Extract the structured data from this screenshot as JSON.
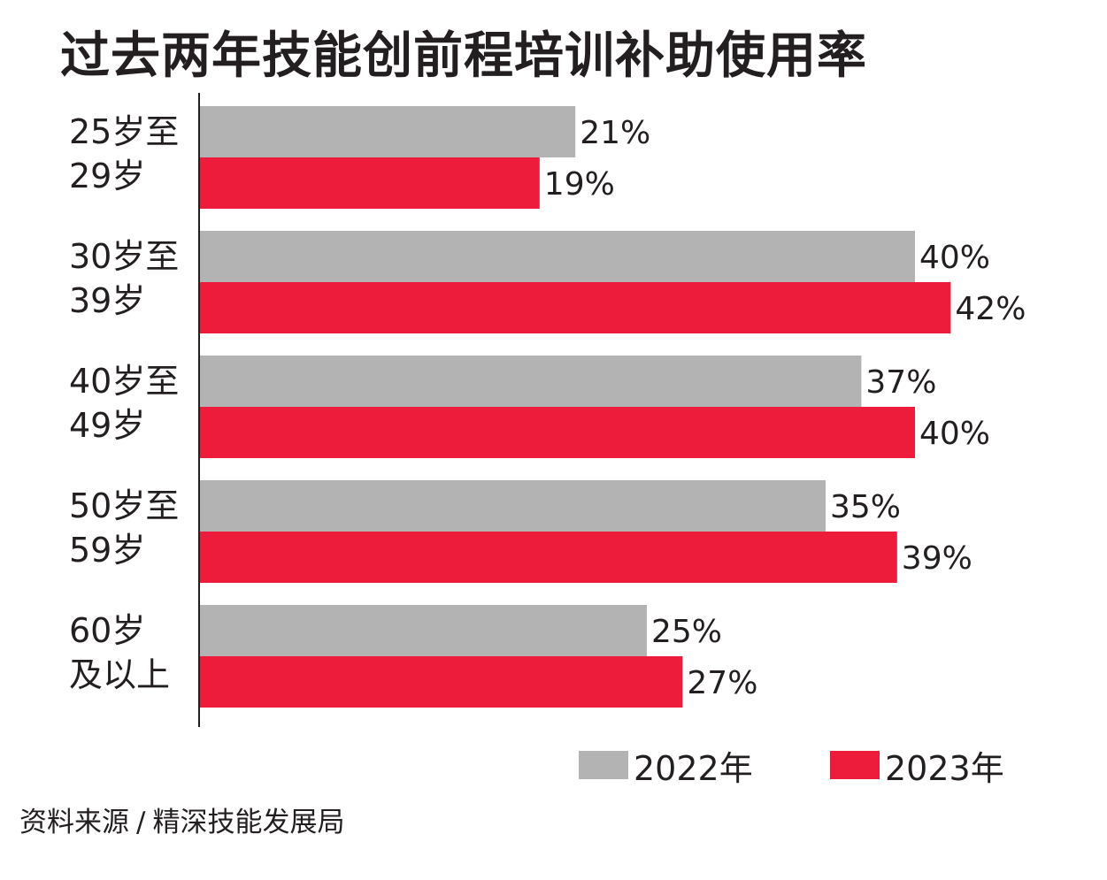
{
  "title": "过去两年技能创前程培训补助使用率",
  "source": {
    "label": "资料来源",
    "separator": "/",
    "name": "精深技能发展局"
  },
  "chart_data": {
    "type": "bar",
    "orientation": "horizontal",
    "categories": [
      "25岁至29岁",
      "30岁至39岁",
      "40岁至49岁",
      "50岁至59岁",
      "60岁及以上"
    ],
    "category_lines": [
      [
        "25岁至",
        "29岁"
      ],
      [
        "30岁至",
        "39岁"
      ],
      [
        "40岁至",
        "49岁"
      ],
      [
        "50岁至",
        "59岁"
      ],
      [
        "60岁",
        "及以上"
      ]
    ],
    "series": [
      {
        "name": "2022年",
        "color": "#b3b3b3",
        "values": [
          21,
          40,
          37,
          35,
          25
        ],
        "labels": [
          "21%",
          "40%",
          "37%",
          "35%",
          "25%"
        ]
      },
      {
        "name": "2023年",
        "color": "#ed1c3a",
        "values": [
          19,
          42,
          40,
          39,
          27
        ],
        "labels": [
          "19%",
          "42%",
          "40%",
          "39%",
          "27%"
        ]
      }
    ],
    "unit": "%",
    "xlim": [
      0,
      42
    ],
    "grid": false,
    "legend_position": "bottom-right"
  }
}
